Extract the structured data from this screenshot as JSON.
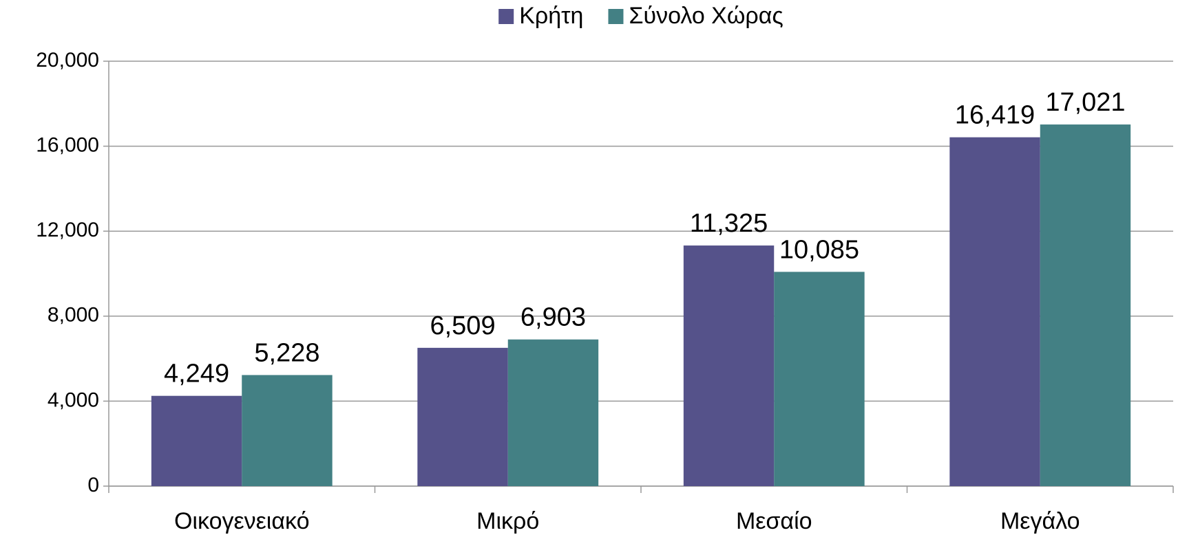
{
  "chart_data": {
    "type": "bar",
    "categories": [
      "Οικογενειακό",
      "Μικρό",
      "Μεσαίο",
      "Μεγάλο"
    ],
    "series": [
      {
        "name": "Κρήτη",
        "color": "#55528a",
        "values": [
          4249,
          6509,
          11325,
          16419
        ],
        "value_labels": [
          "4,249",
          "6,509",
          "11,325",
          "16,419"
        ]
      },
      {
        "name": "Σύνολο Χώρας",
        "color": "#438084",
        "values": [
          5228,
          6903,
          10085,
          17021
        ],
        "value_labels": [
          "5,228",
          "6,903",
          "10,085",
          "17,021"
        ]
      }
    ],
    "ylim": [
      0,
      20000
    ],
    "yticks": [
      0,
      {
        "value": 4000,
        "label": "4,000"
      },
      {
        "value": 8000,
        "label": "8,000"
      },
      {
        "value": 12000,
        "label": "12,000"
      },
      {
        "value": 16000,
        "label": "16,000"
      },
      {
        "value": 20000,
        "label": "20,000"
      }
    ],
    "grid": true,
    "legend": "top"
  }
}
